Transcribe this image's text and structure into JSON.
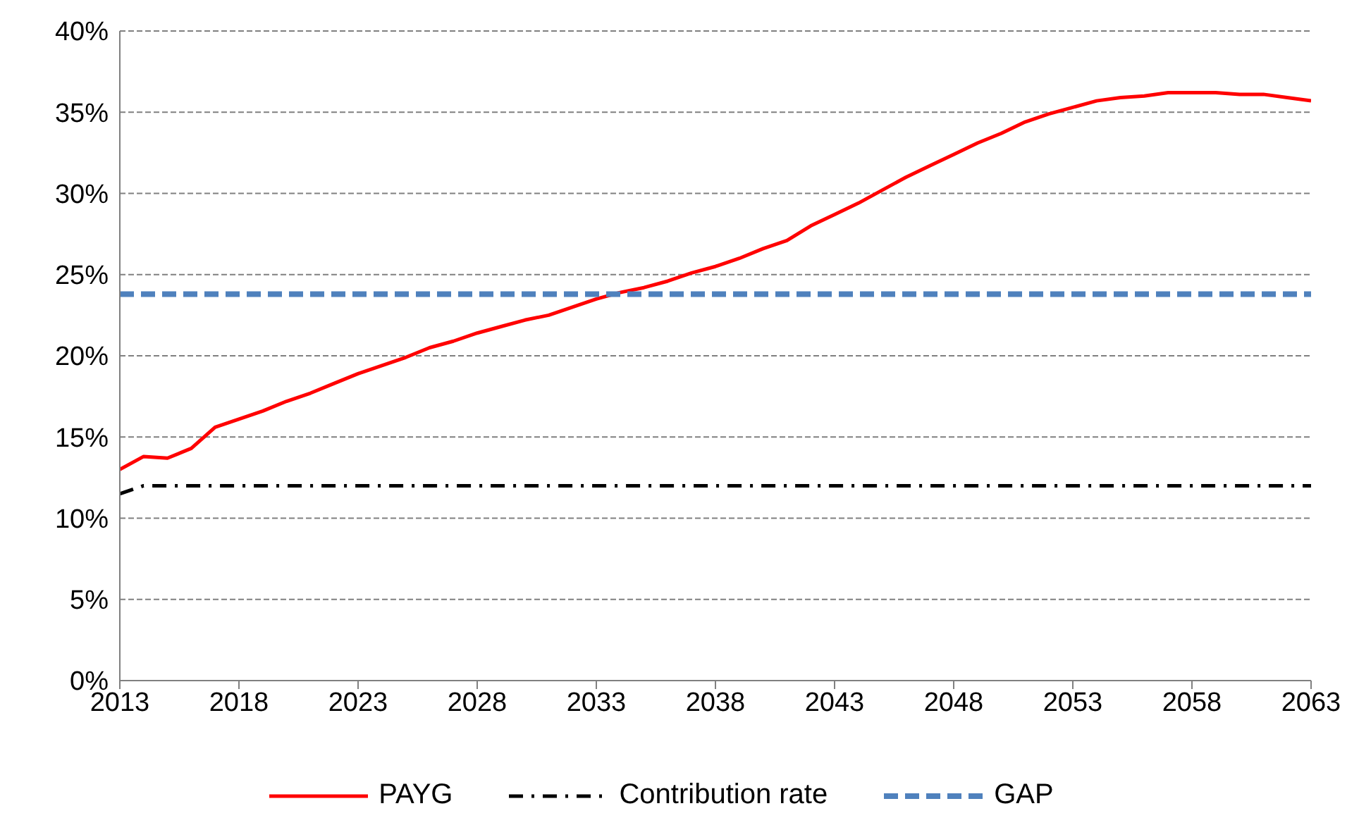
{
  "chart_data": {
    "type": "line",
    "x": [
      2013,
      2014,
      2015,
      2016,
      2017,
      2018,
      2019,
      2020,
      2021,
      2022,
      2023,
      2024,
      2025,
      2026,
      2027,
      2028,
      2029,
      2030,
      2031,
      2032,
      2033,
      2034,
      2035,
      2036,
      2037,
      2038,
      2039,
      2040,
      2041,
      2042,
      2043,
      2044,
      2045,
      2046,
      2047,
      2048,
      2049,
      2050,
      2051,
      2052,
      2053,
      2054,
      2055,
      2056,
      2057,
      2058,
      2059,
      2060,
      2061,
      2062,
      2063
    ],
    "series": [
      {
        "name": "PAYG",
        "color": "#ff0000",
        "line_style": "solid",
        "values": [
          13.0,
          13.8,
          13.7,
          14.3,
          15.6,
          16.1,
          16.6,
          17.2,
          17.7,
          18.3,
          18.9,
          19.4,
          19.9,
          20.5,
          20.9,
          21.4,
          21.8,
          22.2,
          22.5,
          23.0,
          23.5,
          23.9,
          24.2,
          24.6,
          25.1,
          25.5,
          26.0,
          26.6,
          27.1,
          28.0,
          28.7,
          29.4,
          30.2,
          31.0,
          31.7,
          32.4,
          33.1,
          33.7,
          34.4,
          34.9,
          35.3,
          35.7,
          35.9,
          36.0,
          36.2,
          36.2,
          36.2,
          36.1,
          36.1,
          35.9,
          35.7
        ]
      },
      {
        "name": "Contribution rate",
        "color": "#000000",
        "line_style": "dashdot",
        "values": [
          11.5,
          12.0,
          12.0,
          12.0,
          12.0,
          12.0,
          12.0,
          12.0,
          12.0,
          12.0,
          12.0,
          12.0,
          12.0,
          12.0,
          12.0,
          12.0,
          12.0,
          12.0,
          12.0,
          12.0,
          12.0,
          12.0,
          12.0,
          12.0,
          12.0,
          12.0,
          12.0,
          12.0,
          12.0,
          12.0,
          12.0,
          12.0,
          12.0,
          12.0,
          12.0,
          12.0,
          12.0,
          12.0,
          12.0,
          12.0,
          12.0,
          12.0,
          12.0,
          12.0,
          12.0,
          12.0,
          12.0,
          12.0,
          12.0,
          12.0,
          12.0
        ]
      },
      {
        "name": "GAP",
        "color": "#4f81bd",
        "line_style": "dashed",
        "values": [
          23.8,
          23.8,
          23.8,
          23.8,
          23.8,
          23.8,
          23.8,
          23.8,
          23.8,
          23.8,
          23.8,
          23.8,
          23.8,
          23.8,
          23.8,
          23.8,
          23.8,
          23.8,
          23.8,
          23.8,
          23.8,
          23.8,
          23.8,
          23.8,
          23.8,
          23.8,
          23.8,
          23.8,
          23.8,
          23.8,
          23.8,
          23.8,
          23.8,
          23.8,
          23.8,
          23.8,
          23.8,
          23.8,
          23.8,
          23.8,
          23.8,
          23.8,
          23.8,
          23.8,
          23.8,
          23.8,
          23.8,
          23.8,
          23.8,
          23.8,
          23.8
        ]
      }
    ],
    "xlim": [
      2013,
      2063
    ],
    "xticks": [
      2013,
      2018,
      2023,
      2028,
      2033,
      2038,
      2043,
      2048,
      2053,
      2058,
      2063
    ],
    "ylim": [
      0,
      40
    ],
    "yticks": [
      {
        "value": 0,
        "label": "0%"
      },
      {
        "value": 5,
        "label": "5%"
      },
      {
        "value": 10,
        "label": "10%"
      },
      {
        "value": 15,
        "label": "15%"
      },
      {
        "value": 20,
        "label": "20%"
      },
      {
        "value": 25,
        "label": "25%"
      },
      {
        "value": 30,
        "label": "30%"
      },
      {
        "value": 35,
        "label": "35%"
      },
      {
        "value": 40,
        "label": "40%"
      }
    ],
    "grid": "y",
    "legend": "bottom",
    "marker": "none"
  }
}
